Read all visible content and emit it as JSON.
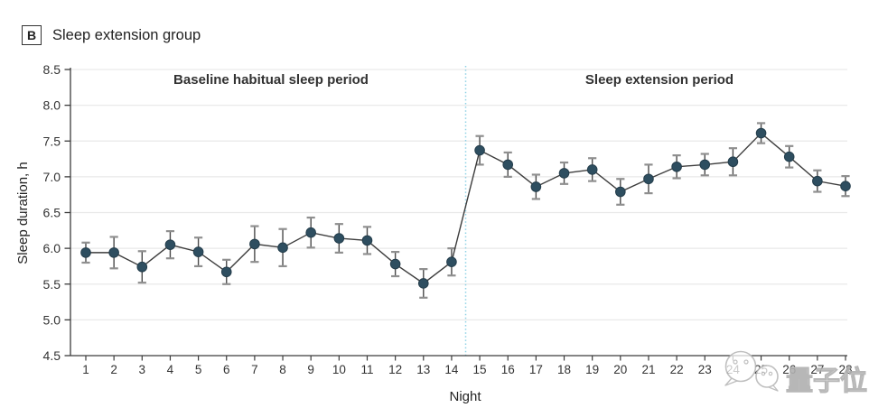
{
  "panel": {
    "label": "B",
    "title": "Sleep extension group"
  },
  "chart_data": {
    "type": "line",
    "x": [
      1,
      2,
      3,
      4,
      5,
      6,
      7,
      8,
      9,
      10,
      11,
      12,
      13,
      14,
      15,
      16,
      17,
      18,
      19,
      20,
      21,
      22,
      23,
      24,
      25,
      26,
      27,
      28
    ],
    "series": [
      {
        "name": "Sleep duration",
        "values": [
          5.94,
          5.94,
          5.74,
          6.05,
          5.95,
          5.67,
          6.06,
          6.01,
          6.22,
          6.14,
          6.11,
          5.78,
          5.51,
          5.81,
          7.37,
          7.17,
          6.86,
          7.05,
          7.1,
          6.79,
          6.97,
          7.14,
          7.17,
          7.21,
          7.61,
          7.28,
          6.94,
          6.87
        ],
        "errors": [
          0.14,
          0.22,
          0.22,
          0.19,
          0.2,
          0.17,
          0.25,
          0.26,
          0.21,
          0.2,
          0.19,
          0.17,
          0.2,
          0.19,
          0.2,
          0.17,
          0.17,
          0.15,
          0.16,
          0.18,
          0.2,
          0.16,
          0.15,
          0.19,
          0.14,
          0.15,
          0.15,
          0.14
        ]
      }
    ],
    "title": "",
    "xlabel": "Night",
    "ylabel": "Sleep duration, h",
    "ylim": [
      4.5,
      8.5
    ],
    "ytick_step": 0.5,
    "grid": true,
    "annotations": [
      {
        "text": "Baseline habitual sleep period",
        "x_range": [
          1,
          14
        ]
      },
      {
        "text": "Sleep extension period",
        "x_range": [
          15,
          28
        ]
      }
    ],
    "divider": {
      "x": 14.5,
      "style": "dotted"
    }
  },
  "watermark": {
    "text": "量子位"
  },
  "colors": {
    "marker": "#2e4e60",
    "marker_stroke": "#243d4b",
    "line": "#3d3d3d",
    "error_bar": "#4a4a4a",
    "error_cap": "#8f8f8f",
    "grid": "#e9e9e9",
    "axis": "#3c3c3c",
    "tick_label": "#333333",
    "divider": "#8fd2e6",
    "annotation_text": "#323232",
    "watermark_stroke": "#b3b3b3"
  }
}
